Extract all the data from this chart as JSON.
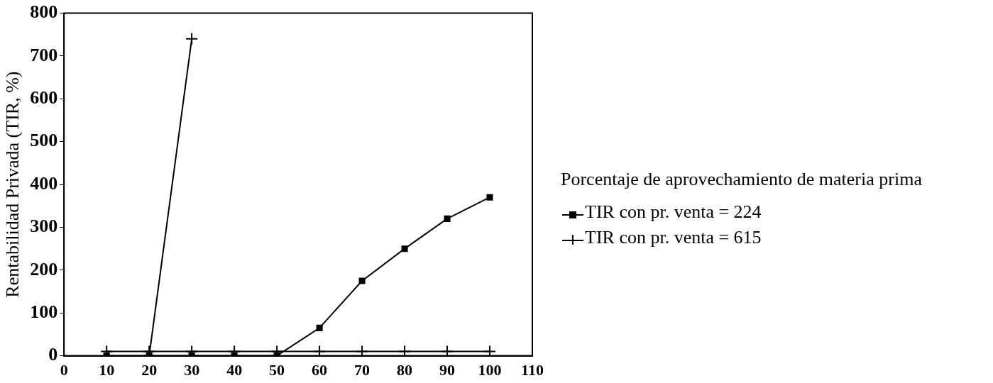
{
  "chart_data": {
    "type": "line",
    "ylabel": "Rentabilidad Privada (TIR, %)",
    "legend_title": "Porcentaje de aprovechamiento de materia prima",
    "legend": "right",
    "grid": false,
    "xlim": [
      0,
      110
    ],
    "xticks": [
      0,
      10,
      20,
      30,
      40,
      50,
      60,
      70,
      80,
      90,
      100,
      110
    ],
    "ylim": [
      0,
      800
    ],
    "yticks": [
      0,
      100,
      200,
      300,
      400,
      500,
      600,
      700,
      800
    ],
    "series": [
      {
        "name": "TIR con pr. venta = 224",
        "color": "#000000",
        "marker": "square",
        "x": [
          10,
          20,
          30,
          40,
          50,
          60,
          70,
          80,
          90,
          100
        ],
        "values": [
          0,
          0,
          0,
          0,
          0,
          65,
          175,
          250,
          320,
          370
        ]
      },
      {
        "name": "TIR con pr. venta = 615",
        "color": "#000000",
        "marker": "cross",
        "x": [
          10,
          20,
          30,
          40,
          50,
          60,
          70,
          80,
          90,
          100
        ],
        "values": [
          10,
          10,
          10,
          10,
          10,
          10,
          10,
          10,
          10,
          10
        ]
      },
      {
        "color": "#000000",
        "marker": "cross",
        "x": [
          20,
          30
        ],
        "values": [
          0,
          740
        ]
      }
    ]
  }
}
